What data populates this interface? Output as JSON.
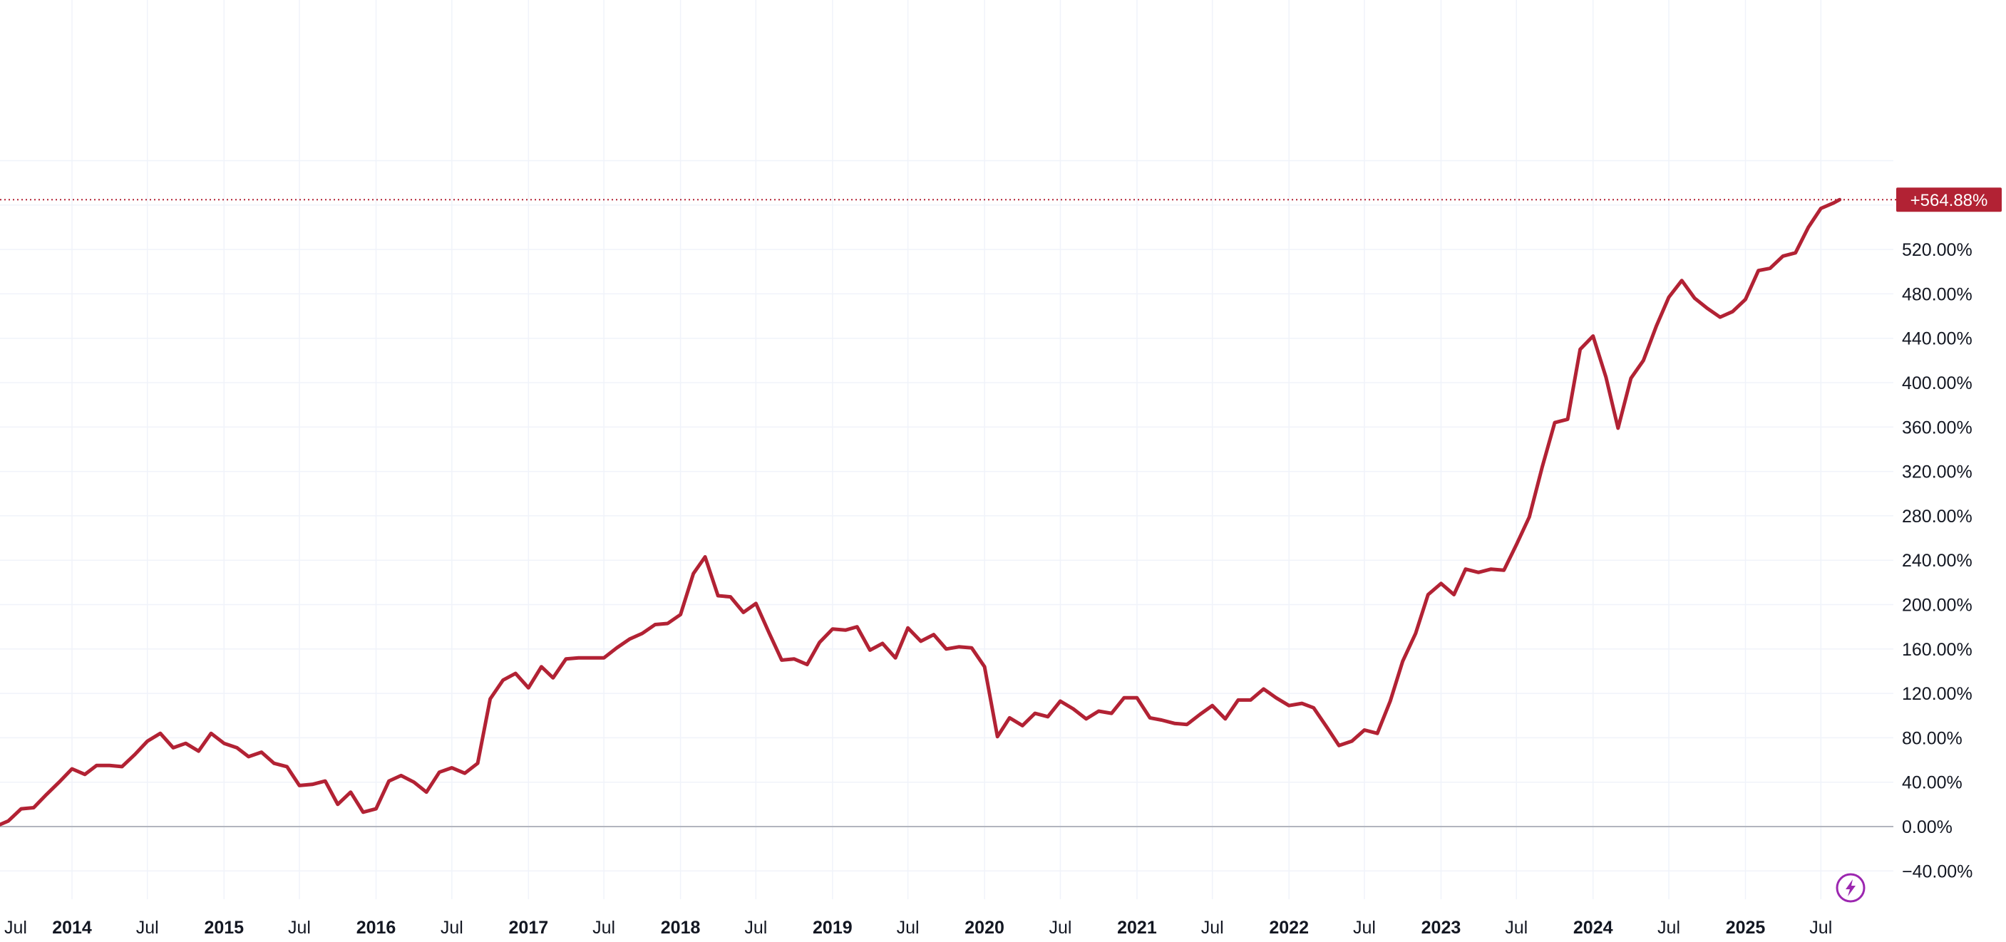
{
  "chart_data": {
    "type": "line",
    "xlabel": "",
    "ylabel": "",
    "x_axis": "date",
    "ylim": [
      -50,
      620
    ],
    "xlim": [
      "2013-01-01",
      "2025-12-01"
    ],
    "grid": true,
    "colors": {
      "line": "#b22234",
      "grid": "#f0f3fa",
      "zero_line": "#b2b5be",
      "label_bg": "#b22234"
    },
    "y_ticks": [
      "−40.00%",
      "0.00%",
      "40.00%",
      "80.00%",
      "120.00%",
      "160.00%",
      "200.00%",
      "240.00%",
      "280.00%",
      "320.00%",
      "360.00%",
      "400.00%",
      "440.00%",
      "480.00%",
      "520.00%"
    ],
    "x_ticks": [
      {
        "label": "Jul",
        "major": false,
        "date": "2013-07-01"
      },
      {
        "label": "2014",
        "major": true,
        "date": "2014-01-01"
      },
      {
        "label": "Jul",
        "major": false,
        "date": "2014-07-01"
      },
      {
        "label": "2015",
        "major": true,
        "date": "2015-01-01"
      },
      {
        "label": "Jul",
        "major": false,
        "date": "2015-07-01"
      },
      {
        "label": "2016",
        "major": true,
        "date": "2016-01-01"
      },
      {
        "label": "Jul",
        "major": false,
        "date": "2016-07-01"
      },
      {
        "label": "2017",
        "major": true,
        "date": "2017-01-01"
      },
      {
        "label": "Jul",
        "major": false,
        "date": "2017-07-01"
      },
      {
        "label": "2018",
        "major": true,
        "date": "2018-01-01"
      },
      {
        "label": "Jul",
        "major": false,
        "date": "2018-07-01"
      },
      {
        "label": "2019",
        "major": true,
        "date": "2019-01-01"
      },
      {
        "label": "Jul",
        "major": false,
        "date": "2019-07-01"
      },
      {
        "label": "2020",
        "major": true,
        "date": "2020-01-01"
      },
      {
        "label": "Jul",
        "major": false,
        "date": "2020-07-01"
      },
      {
        "label": "2021",
        "major": true,
        "date": "2021-01-01"
      },
      {
        "label": "Jul",
        "major": false,
        "date": "2021-07-01"
      },
      {
        "label": "2022",
        "major": true,
        "date": "2022-01-01"
      },
      {
        "label": "Jul",
        "major": false,
        "date": "2022-07-01"
      },
      {
        "label": "2023",
        "major": true,
        "date": "2023-01-01"
      },
      {
        "label": "Jul",
        "major": false,
        "date": "2023-07-01"
      },
      {
        "label": "2024",
        "major": true,
        "date": "2024-01-01"
      },
      {
        "label": "Jul",
        "major": false,
        "date": "2024-07-01"
      },
      {
        "label": "2025",
        "major": true,
        "date": "2025-01-01"
      },
      {
        "label": "Jul",
        "major": false,
        "date": "2025-07-01"
      }
    ],
    "current_value_label": "+564.88%",
    "current_value": 564.88,
    "series": [
      {
        "values": [
          {
            "x": "2013-07-01",
            "y": 0
          },
          {
            "x": "2013-08-01",
            "y": 5
          },
          {
            "x": "2013-09-01",
            "y": 16
          },
          {
            "x": "2013-10-01",
            "y": 17
          },
          {
            "x": "2013-11-01",
            "y": 29
          },
          {
            "x": "2013-12-01",
            "y": 40
          },
          {
            "x": "2014-01-01",
            "y": 52
          },
          {
            "x": "2014-02-01",
            "y": 47
          },
          {
            "x": "2014-03-01",
            "y": 55
          },
          {
            "x": "2014-04-01",
            "y": 55
          },
          {
            "x": "2014-05-01",
            "y": 54
          },
          {
            "x": "2014-06-01",
            "y": 65
          },
          {
            "x": "2014-07-01",
            "y": 77
          },
          {
            "x": "2014-08-01",
            "y": 84
          },
          {
            "x": "2014-09-01",
            "y": 71
          },
          {
            "x": "2014-10-01",
            "y": 75
          },
          {
            "x": "2014-11-01",
            "y": 68
          },
          {
            "x": "2014-12-01",
            "y": 84
          },
          {
            "x": "2015-01-01",
            "y": 75
          },
          {
            "x": "2015-02-01",
            "y": 71
          },
          {
            "x": "2015-03-01",
            "y": 63
          },
          {
            "x": "2015-04-01",
            "y": 67
          },
          {
            "x": "2015-05-01",
            "y": 57
          },
          {
            "x": "2015-06-01",
            "y": 54
          },
          {
            "x": "2015-07-01",
            "y": 37
          },
          {
            "x": "2015-08-01",
            "y": 38
          },
          {
            "x": "2015-09-01",
            "y": 41
          },
          {
            "x": "2015-10-01",
            "y": 20
          },
          {
            "x": "2015-11-01",
            "y": 31
          },
          {
            "x": "2015-12-01",
            "y": 13
          },
          {
            "x": "2016-01-01",
            "y": 16
          },
          {
            "x": "2016-02-01",
            "y": 41
          },
          {
            "x": "2016-03-01",
            "y": 46
          },
          {
            "x": "2016-04-01",
            "y": 40
          },
          {
            "x": "2016-05-01",
            "y": 31
          },
          {
            "x": "2016-06-01",
            "y": 49
          },
          {
            "x": "2016-07-01",
            "y": 53
          },
          {
            "x": "2016-08-01",
            "y": 48
          },
          {
            "x": "2016-09-01",
            "y": 57
          },
          {
            "x": "2016-10-01",
            "y": 115
          },
          {
            "x": "2016-11-01",
            "y": 132
          },
          {
            "x": "2016-12-01",
            "y": 138
          },
          {
            "x": "2017-01-01",
            "y": 125
          },
          {
            "x": "2017-02-01",
            "y": 144
          },
          {
            "x": "2017-03-01",
            "y": 134
          },
          {
            "x": "2017-04-01",
            "y": 151
          },
          {
            "x": "2017-05-01",
            "y": 152
          },
          {
            "x": "2017-06-01",
            "y": 152
          },
          {
            "x": "2017-07-01",
            "y": 152
          },
          {
            "x": "2017-08-01",
            "y": 161
          },
          {
            "x": "2017-09-01",
            "y": 169
          },
          {
            "x": "2017-10-01",
            "y": 174
          },
          {
            "x": "2017-11-01",
            "y": 182
          },
          {
            "x": "2017-12-01",
            "y": 183
          },
          {
            "x": "2018-01-01",
            "y": 191
          },
          {
            "x": "2018-02-01",
            "y": 228
          },
          {
            "x": "2018-03-01",
            "y": 243
          },
          {
            "x": "2018-04-01",
            "y": 208
          },
          {
            "x": "2018-05-01",
            "y": 207
          },
          {
            "x": "2018-06-01",
            "y": 193
          },
          {
            "x": "2018-07-01",
            "y": 201
          },
          {
            "x": "2018-08-01",
            "y": 175
          },
          {
            "x": "2018-09-01",
            "y": 150
          },
          {
            "x": "2018-10-01",
            "y": 151
          },
          {
            "x": "2018-11-01",
            "y": 146
          },
          {
            "x": "2018-12-01",
            "y": 166
          },
          {
            "x": "2019-01-01",
            "y": 178
          },
          {
            "x": "2019-02-01",
            "y": 177
          },
          {
            "x": "2019-03-01",
            "y": 180
          },
          {
            "x": "2019-04-01",
            "y": 159
          },
          {
            "x": "2019-05-01",
            "y": 165
          },
          {
            "x": "2019-06-01",
            "y": 152
          },
          {
            "x": "2019-07-01",
            "y": 179
          },
          {
            "x": "2019-08-01",
            "y": 167
          },
          {
            "x": "2019-09-01",
            "y": 173
          },
          {
            "x": "2019-10-01",
            "y": 160
          },
          {
            "x": "2019-11-01",
            "y": 162
          },
          {
            "x": "2019-12-01",
            "y": 161
          },
          {
            "x": "2020-01-01",
            "y": 144
          },
          {
            "x": "2020-02-01",
            "y": 81
          },
          {
            "x": "2020-03-01",
            "y": 98
          },
          {
            "x": "2020-04-01",
            "y": 91
          },
          {
            "x": "2020-05-01",
            "y": 102
          },
          {
            "x": "2020-06-01",
            "y": 99
          },
          {
            "x": "2020-07-01",
            "y": 113
          },
          {
            "x": "2020-08-01",
            "y": 106
          },
          {
            "x": "2020-09-01",
            "y": 97
          },
          {
            "x": "2020-10-01",
            "y": 104
          },
          {
            "x": "2020-11-01",
            "y": 102
          },
          {
            "x": "2020-12-01",
            "y": 116
          },
          {
            "x": "2021-01-01",
            "y": 116
          },
          {
            "x": "2021-02-01",
            "y": 98
          },
          {
            "x": "2021-03-01",
            "y": 96
          },
          {
            "x": "2021-04-01",
            "y": 93
          },
          {
            "x": "2021-05-01",
            "y": 92
          },
          {
            "x": "2021-06-01",
            "y": 101
          },
          {
            "x": "2021-07-01",
            "y": 109
          },
          {
            "x": "2021-08-01",
            "y": 97
          },
          {
            "x": "2021-09-01",
            "y": 114
          },
          {
            "x": "2021-10-01",
            "y": 114
          },
          {
            "x": "2021-11-01",
            "y": 124
          },
          {
            "x": "2021-12-01",
            "y": 116
          },
          {
            "x": "2022-01-01",
            "y": 109
          },
          {
            "x": "2022-02-01",
            "y": 111
          },
          {
            "x": "2022-03-01",
            "y": 107
          },
          {
            "x": "2022-04-01",
            "y": 90
          },
          {
            "x": "2022-05-01",
            "y": 73
          },
          {
            "x": "2022-06-01",
            "y": 77
          },
          {
            "x": "2022-07-01",
            "y": 87
          },
          {
            "x": "2022-08-01",
            "y": 84
          },
          {
            "x": "2022-09-01",
            "y": 113
          },
          {
            "x": "2022-10-01",
            "y": 149
          },
          {
            "x": "2022-11-01",
            "y": 174
          },
          {
            "x": "2022-12-01",
            "y": 209
          },
          {
            "x": "2023-01-01",
            "y": 219
          },
          {
            "x": "2023-02-01",
            "y": 209
          },
          {
            "x": "2023-03-01",
            "y": 232
          },
          {
            "x": "2023-04-01",
            "y": 229
          },
          {
            "x": "2023-05-01",
            "y": 232
          },
          {
            "x": "2023-06-01",
            "y": 231
          },
          {
            "x": "2023-07-01",
            "y": 254
          },
          {
            "x": "2023-08-01",
            "y": 279
          },
          {
            "x": "2023-09-01",
            "y": 324
          },
          {
            "x": "2023-10-01",
            "y": 364
          },
          {
            "x": "2023-11-01",
            "y": 367
          },
          {
            "x": "2023-12-01",
            "y": 430
          },
          {
            "x": "2024-01-01",
            "y": 442
          },
          {
            "x": "2024-02-01",
            "y": 405
          },
          {
            "x": "2024-03-01",
            "y": 359
          },
          {
            "x": "2024-04-01",
            "y": 404
          },
          {
            "x": "2024-05-01",
            "y": 420
          },
          {
            "x": "2024-06-01",
            "y": 451
          },
          {
            "x": "2024-07-01",
            "y": 477
          },
          {
            "x": "2024-08-01",
            "y": 492
          },
          {
            "x": "2024-09-01",
            "y": 476
          },
          {
            "x": "2024-10-01",
            "y": 467
          },
          {
            "x": "2024-11-01",
            "y": 459
          },
          {
            "x": "2024-12-01",
            "y": 464
          },
          {
            "x": "2025-01-01",
            "y": 475
          },
          {
            "x": "2025-02-01",
            "y": 501
          },
          {
            "x": "2025-03-01",
            "y": 503
          },
          {
            "x": "2025-04-01",
            "y": 514
          },
          {
            "x": "2025-05-01",
            "y": 517
          },
          {
            "x": "2025-06-01",
            "y": 540
          },
          {
            "x": "2025-07-01",
            "y": 557
          },
          {
            "x": "2025-08-01",
            "y": 562
          },
          {
            "x": "2025-08-15",
            "y": 564.88
          }
        ]
      }
    ]
  }
}
